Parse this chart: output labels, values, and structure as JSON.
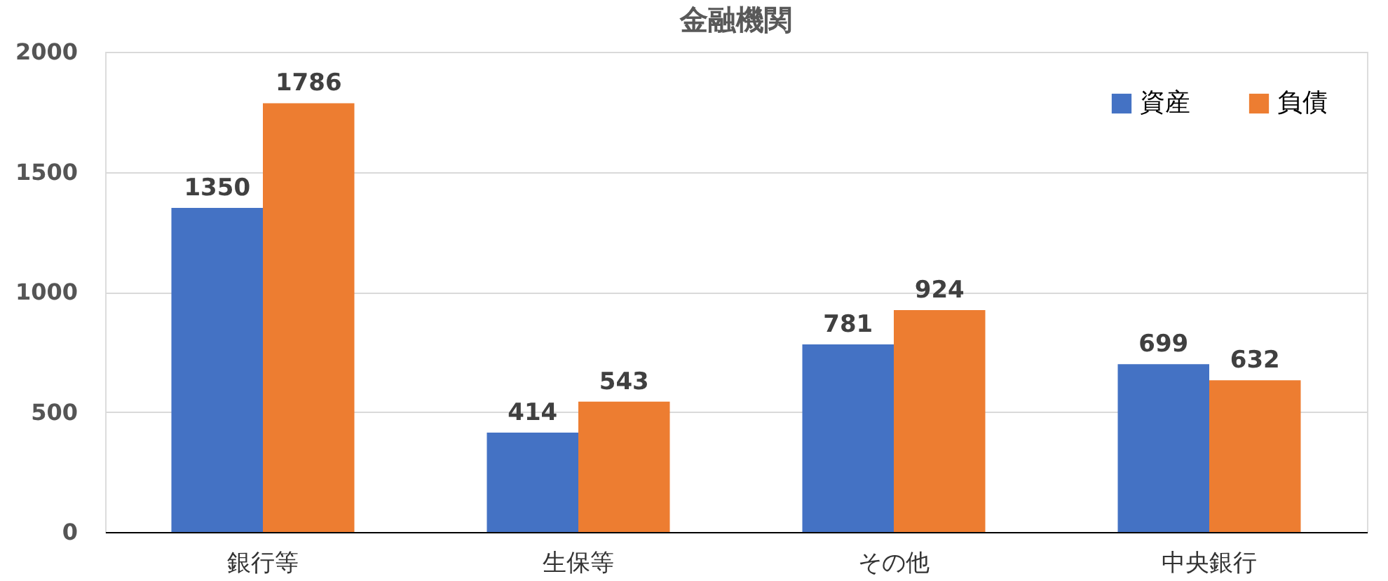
{
  "chart_data": {
    "type": "bar",
    "title": "金融機関",
    "categories": [
      "銀行等",
      "生保等",
      "その他",
      "中央銀行"
    ],
    "series": [
      {
        "name": "資産",
        "color": "#4472c4",
        "values": [
          1350,
          414,
          781,
          699
        ]
      },
      {
        "name": "負債",
        "color": "#ed7d31",
        "values": [
          1786,
          543,
          924,
          632
        ]
      }
    ],
    "ylim": [
      0,
      2000
    ],
    "yticks": [
      0,
      500,
      1000,
      1500,
      2000
    ],
    "grid": "y",
    "legend": "top right",
    "data_labels": true
  }
}
